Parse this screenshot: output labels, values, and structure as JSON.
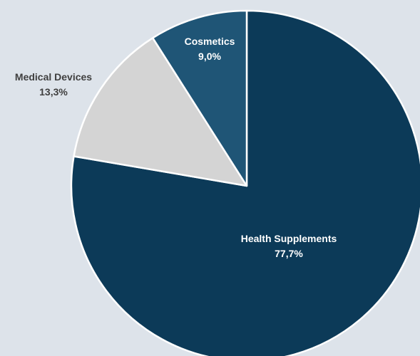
{
  "chart_data": {
    "type": "pie",
    "slices": [
      {
        "label": "Health Supplements",
        "value": 77.7,
        "value_label": "77,7%",
        "color": "#0c3a58",
        "label_color": "#ffffff"
      },
      {
        "label": "Medical Devices",
        "value": 13.3,
        "value_label": "13,3%",
        "color": "#d4d4d4",
        "label_color": "#3f3f3f"
      },
      {
        "label": "Cosmetics",
        "value": 9.0,
        "value_label": "9,0%",
        "color": "#1f5576",
        "label_color": "#ffffff"
      }
    ],
    "start_angle_deg": 0,
    "direction": "clockwise",
    "legend": "none"
  }
}
